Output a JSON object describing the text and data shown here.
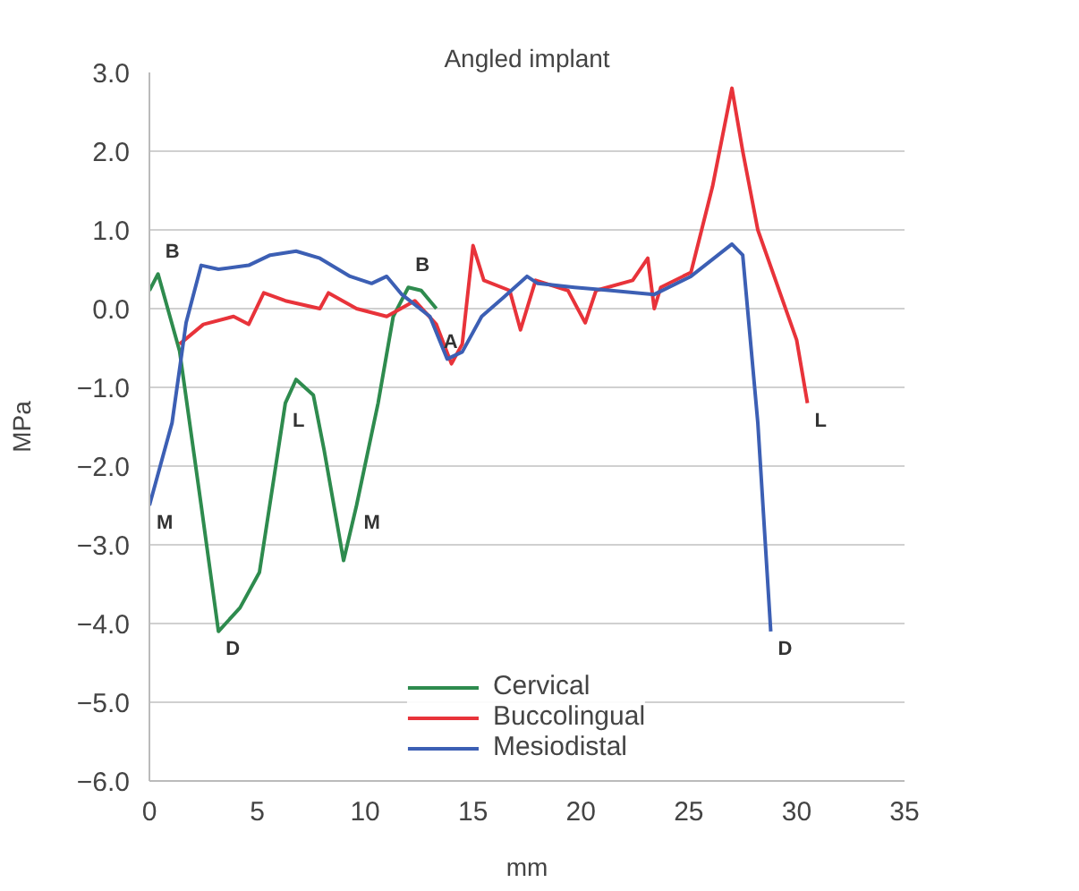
{
  "chart_data": {
    "type": "line",
    "title": "Angled implant",
    "xlabel": "mm",
    "ylabel": "MPa",
    "xlim": [
      0,
      35
    ],
    "xticks": [
      0,
      5,
      10,
      15,
      20,
      25,
      30,
      35
    ],
    "ylim": [
      -6,
      3
    ],
    "yticks": [
      {
        "value": 3,
        "label": "3.0"
      },
      {
        "value": 2,
        "label": "2.0"
      },
      {
        "value": 1,
        "label": "1.0"
      },
      {
        "value": 0,
        "label": "0.0"
      },
      {
        "value": -1,
        "label": "−1.0"
      },
      {
        "value": -2,
        "label": "−2.0"
      },
      {
        "value": -3,
        "label": "−3.0"
      },
      {
        "value": -4,
        "label": "−4.0"
      },
      {
        "value": -5,
        "label": "−5.0"
      },
      {
        "value": -6,
        "label": "−6.0"
      }
    ],
    "grid": "y",
    "legend": "bottom",
    "line_style": "solid",
    "series": [
      {
        "name": "Cervical",
        "color": "#2e8b4e",
        "x": [
          0.0,
          0.4,
          1.4,
          2.4,
          3.2,
          4.2,
          5.1,
          5.8,
          6.3,
          6.8,
          7.6,
          8.1,
          9.0,
          9.6,
          10.6,
          11.3,
          12.0,
          12.6,
          13.3
        ],
        "values": [
          0.23,
          0.44,
          -0.54,
          -2.5,
          -4.1,
          -3.8,
          -3.35,
          -2.1,
          -1.2,
          -0.9,
          -1.1,
          -1.8,
          -3.2,
          -2.5,
          -1.2,
          -0.1,
          0.27,
          0.23,
          0.0
        ]
      },
      {
        "name": "Buccolingual",
        "color": "#e8333a",
        "x": [
          1.4,
          2.5,
          3.9,
          4.6,
          5.3,
          6.3,
          7.9,
          8.3,
          9.6,
          11.0,
          12.3,
          13.3,
          14.0,
          14.5,
          15.0,
          15.5,
          16.7,
          17.2,
          17.9,
          19.4,
          20.2,
          20.7,
          22.4,
          23.1,
          23.4,
          23.7,
          25.1,
          26.1,
          27.0,
          27.5,
          28.2,
          30.0,
          30.5
        ],
        "values": [
          -0.45,
          -0.2,
          -0.1,
          -0.2,
          0.2,
          0.1,
          0.0,
          0.2,
          0.0,
          -0.1,
          0.1,
          -0.2,
          -0.7,
          -0.45,
          0.8,
          0.36,
          0.23,
          -0.27,
          0.36,
          0.23,
          -0.18,
          0.23,
          0.36,
          0.64,
          0.0,
          0.27,
          0.46,
          1.55,
          2.8,
          2.0,
          1.0,
          -0.4,
          -1.2
        ]
      },
      {
        "name": "Mesiodistal",
        "color": "#3c5fb4",
        "x": [
          0.0,
          1.05,
          1.7,
          2.4,
          3.2,
          4.6,
          5.6,
          6.8,
          7.9,
          9.3,
          10.3,
          11.0,
          11.7,
          13.0,
          13.8,
          14.5,
          15.4,
          16.4,
          17.5,
          18.0,
          19.7,
          21.4,
          23.4,
          25.1,
          27.0,
          27.5,
          28.2,
          28.8
        ],
        "values": [
          -2.5,
          -1.45,
          -0.18,
          0.55,
          0.5,
          0.55,
          0.68,
          0.73,
          0.64,
          0.41,
          0.32,
          0.41,
          0.18,
          -0.1,
          -0.64,
          -0.55,
          -0.1,
          0.14,
          0.41,
          0.32,
          0.27,
          0.23,
          0.18,
          0.41,
          0.82,
          0.68,
          -1.45,
          -4.1
        ]
      }
    ],
    "annotations": [
      {
        "text": "B",
        "x": 0.4,
        "y": 0.44
      },
      {
        "text": "D",
        "x": 3.2,
        "y": -4.1
      },
      {
        "text": "L",
        "x": 6.3,
        "y": -1.2
      },
      {
        "text": "M",
        "x": 9.6,
        "y": -2.5
      },
      {
        "text": "B",
        "x": 12.0,
        "y": 0.27
      },
      {
        "text": "A",
        "x": 13.3,
        "y": -0.2
      },
      {
        "text": "M",
        "x": 0.0,
        "y": -2.5
      },
      {
        "text": "D",
        "x": 28.8,
        "y": -4.1
      },
      {
        "text": "L",
        "x": 30.5,
        "y": -1.2
      }
    ]
  }
}
